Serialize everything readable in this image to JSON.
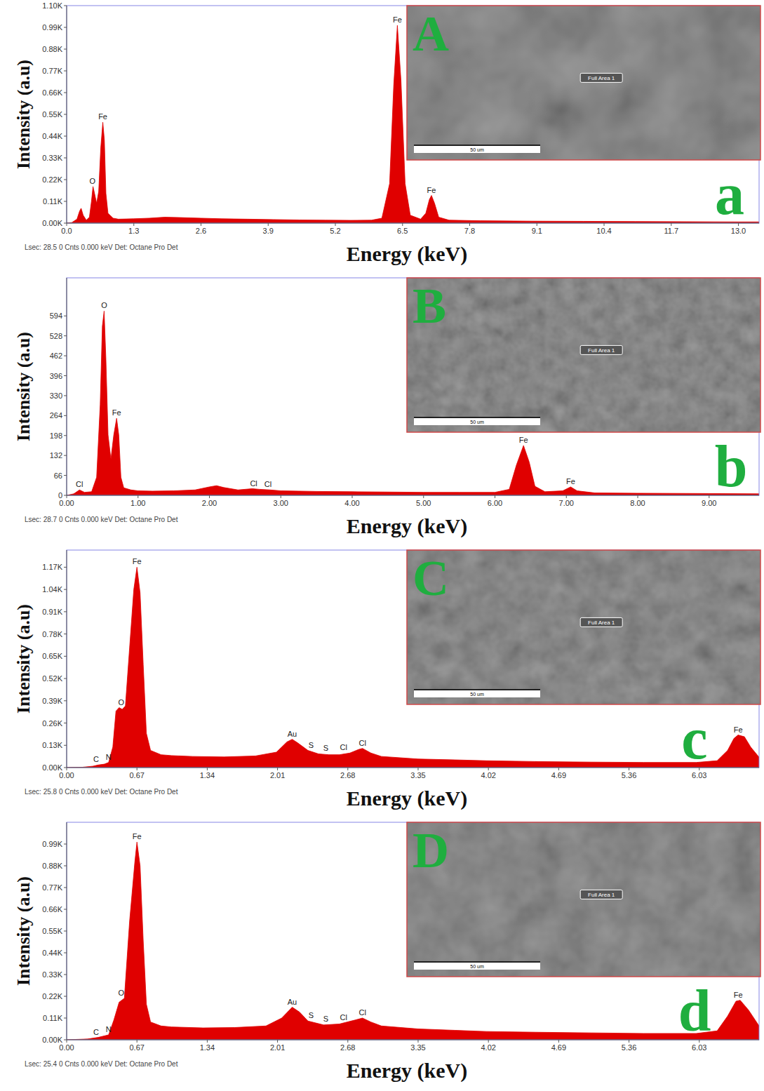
{
  "chart_data": [
    {
      "type": "area",
      "color": "#e00000",
      "panel_label": "a",
      "xlabel": "Energy (keV)",
      "ylabel": "Intensity (a.u)",
      "footer": "Lsec: 28.5 0 Cnts 0.000 keV Det: Octane Pro Det",
      "inset": {
        "label": "A",
        "area": "Full Area 1",
        "scale_bar": "50 um"
      },
      "xlim": [
        0,
        13.4
      ],
      "ylim": [
        0,
        1100
      ],
      "xticks": [
        {
          "value": 0,
          "label": "0.0"
        },
        1.3,
        2.6,
        3.9,
        5.2,
        6.5,
        7.8,
        9.1,
        10.4,
        11.7,
        {
          "value": 13,
          "label": "13.0"
        }
      ],
      "yticks": [
        {
          "value": 0,
          "label": "0.00K"
        },
        {
          "value": 110,
          "label": "0.11K"
        },
        {
          "value": 220,
          "label": "0.22K"
        },
        {
          "value": 330,
          "label": "0.33K"
        },
        {
          "value": 440,
          "label": "0.44K"
        },
        {
          "value": 550,
          "label": "0.55K"
        },
        {
          "value": 660,
          "label": "0.66K"
        },
        {
          "value": 770,
          "label": "0.77K"
        },
        {
          "value": 880,
          "label": "0.88K"
        },
        {
          "value": 990,
          "label": "0.99K"
        },
        {
          "value": 1100,
          "label": "1.10K"
        }
      ],
      "x": [
        0,
        0.1,
        0.2,
        0.25,
        0.28,
        0.32,
        0.38,
        0.44,
        0.48,
        0.51,
        0.54,
        0.58,
        0.62,
        0.66,
        0.7,
        0.73,
        0.76,
        0.8,
        0.9,
        1,
        1.3,
        1.6,
        1.9,
        2.2,
        2.6,
        3,
        3.5,
        4,
        4.5,
        5,
        5.5,
        5.9,
        6.1,
        6.25,
        6.33,
        6.4,
        6.47,
        6.55,
        6.65,
        6.85,
        6.95,
        7.02,
        7.06,
        7.12,
        7.2,
        7.4,
        8,
        9,
        10,
        11,
        12,
        13,
        13.4
      ],
      "values": [
        0,
        3,
        20,
        60,
        75,
        40,
        15,
        30,
        110,
        185,
        150,
        100,
        160,
        380,
        510,
        420,
        150,
        50,
        25,
        20,
        22,
        25,
        30,
        28,
        25,
        22,
        20,
        18,
        16,
        15,
        14,
        15,
        25,
        200,
        700,
        1000,
        720,
        200,
        40,
        20,
        50,
        120,
        140,
        100,
        30,
        15,
        12,
        10,
        9,
        8,
        7,
        6,
        6
      ],
      "annotations": [
        {
          "text": "O",
          "x": 0.5,
          "y": 185
        },
        {
          "text": "Fe",
          "x": 0.7,
          "y": 510
        },
        {
          "text": "Fe",
          "x": 6.4,
          "y": 1000
        },
        {
          "text": "Fe",
          "x": 7.06,
          "y": 140
        }
      ]
    },
    {
      "type": "area",
      "color": "#e00000",
      "panel_label": "b",
      "xlabel": "Energy (keV)",
      "ylabel": "Intensity (a.u)",
      "footer": "Lsec: 28.7 0 Cnts 0.000 keV Det: Octane Pro Det",
      "inset": {
        "label": "B",
        "area": "Full Area 1",
        "scale_bar": "50 um"
      },
      "xlim": [
        0,
        9.7
      ],
      "ylim": [
        0,
        720
      ],
      "xticks": [
        {
          "value": 0,
          "label": "0.00"
        },
        {
          "value": 1,
          "label": "1.00"
        },
        {
          "value": 2,
          "label": "2.00"
        },
        {
          "value": 3,
          "label": "3.00"
        },
        {
          "value": 4,
          "label": "4.00"
        },
        {
          "value": 5,
          "label": "5.00"
        },
        {
          "value": 6,
          "label": "6.00"
        },
        {
          "value": 7,
          "label": "7.00"
        },
        {
          "value": 8,
          "label": "8.00"
        },
        {
          "value": 9,
          "label": "9.00"
        }
      ],
      "yticks": [
        0,
        66,
        132,
        198,
        264,
        330,
        396,
        462,
        528,
        594
      ],
      "x": [
        0,
        0.1,
        0.18,
        0.25,
        0.35,
        0.42,
        0.47,
        0.5,
        0.525,
        0.55,
        0.58,
        0.62,
        0.66,
        0.7,
        0.73,
        0.76,
        0.8,
        0.9,
        1,
        1.2,
        1.5,
        1.8,
        2,
        2.1,
        2.2,
        2.4,
        2.6,
        2.7,
        2.85,
        3,
        3.5,
        4,
        4.5,
        5,
        5.5,
        6,
        6.2,
        6.3,
        6.4,
        6.48,
        6.56,
        6.7,
        6.95,
        7.06,
        7.15,
        7.4,
        8,
        9,
        9.7
      ],
      "values": [
        0,
        5,
        18,
        10,
        12,
        60,
        300,
        560,
        610,
        450,
        200,
        120,
        200,
        255,
        200,
        60,
        25,
        18,
        15,
        14,
        15,
        18,
        28,
        32,
        26,
        18,
        22,
        20,
        18,
        15,
        13,
        12,
        11,
        10,
        10,
        10,
        20,
        100,
        165,
        110,
        30,
        12,
        15,
        28,
        15,
        8,
        7,
        6,
        5
      ],
      "annotations": [
        {
          "text": "Cl",
          "x": 0.18,
          "y": 18
        },
        {
          "text": "O",
          "x": 0.525,
          "y": 610
        },
        {
          "text": "Fe",
          "x": 0.7,
          "y": 255
        },
        {
          "text": "Cl",
          "x": 2.62,
          "y": 22
        },
        {
          "text": "Cl",
          "x": 2.82,
          "y": 18
        },
        {
          "text": "Fe",
          "x": 6.4,
          "y": 165
        },
        {
          "text": "Fe",
          "x": 7.06,
          "y": 28
        }
      ]
    },
    {
      "type": "area",
      "color": "#e00000",
      "panel_label": "c",
      "xlabel": "Energy (keV)",
      "ylabel": "Intensity (a.u)",
      "footer": "Lsec: 25.8 0 Cnts 0.000 keV Det: Octane Pro Det",
      "inset": {
        "label": "C",
        "area": "Full Area 1",
        "scale_bar": "50 um"
      },
      "xlim": [
        0,
        6.6
      ],
      "ylim": [
        0,
        1270
      ],
      "xticks": [
        {
          "value": 0,
          "label": "0.00"
        },
        0.67,
        1.34,
        2.01,
        2.68,
        3.35,
        4.02,
        4.69,
        5.36,
        6.03
      ],
      "yticks": [
        {
          "value": 0,
          "label": "0.00K"
        },
        {
          "value": 130,
          "label": "0.13K"
        },
        {
          "value": 260,
          "label": "0.26K"
        },
        {
          "value": 390,
          "label": "0.39K"
        },
        {
          "value": 520,
          "label": "0.52K"
        },
        {
          "value": 650,
          "label": "0.65K"
        },
        {
          "value": 780,
          "label": "0.78K"
        },
        {
          "value": 910,
          "label": "0.91K"
        },
        {
          "value": 1040,
          "label": "1.04K"
        },
        {
          "value": 1170,
          "label": "1.17K"
        }
      ],
      "x": [
        0,
        0.15,
        0.25,
        0.3,
        0.36,
        0.4,
        0.44,
        0.47,
        0.5,
        0.53,
        0.56,
        0.6,
        0.64,
        0.67,
        0.7,
        0.73,
        0.76,
        0.8,
        0.9,
        1,
        1.2,
        1.5,
        1.8,
        2,
        2.1,
        2.15,
        2.2,
        2.3,
        2.4,
        2.5,
        2.6,
        2.7,
        2.78,
        2.82,
        2.9,
        3,
        3.35,
        3.7,
        4,
        4.5,
        5,
        5.5,
        6,
        6.2,
        6.3,
        6.36,
        6.4,
        6.46,
        6.52,
        6.6
      ],
      "values": [
        0,
        2,
        8,
        15,
        20,
        30,
        120,
        330,
        350,
        340,
        360,
        700,
        1040,
        1170,
        1020,
        600,
        200,
        100,
        75,
        70,
        65,
        62,
        68,
        90,
        150,
        165,
        145,
        100,
        80,
        75,
        75,
        85,
        105,
        112,
        85,
        65,
        50,
        45,
        40,
        35,
        32,
        30,
        30,
        40,
        100,
        170,
        190,
        180,
        120,
        60
      ],
      "annotations": [
        {
          "text": "C",
          "x": 0.28,
          "y": 15
        },
        {
          "text": "N",
          "x": 0.4,
          "y": 30
        },
        {
          "text": "O",
          "x": 0.52,
          "y": 350
        },
        {
          "text": "Fe",
          "x": 0.67,
          "y": 1170
        },
        {
          "text": "Au",
          "x": 2.15,
          "y": 165
        },
        {
          "text": "S",
          "x": 2.33,
          "y": 100
        },
        {
          "text": "S",
          "x": 2.47,
          "y": 80
        },
        {
          "text": "Cl",
          "x": 2.64,
          "y": 85
        },
        {
          "text": "Cl",
          "x": 2.82,
          "y": 112
        },
        {
          "text": "Fe",
          "x": 6.4,
          "y": 190
        }
      ]
    },
    {
      "type": "area",
      "color": "#e00000",
      "panel_label": "d",
      "xlabel": "Energy (keV)",
      "ylabel": "Intensity (a.u)",
      "footer": "Lsec: 25.4 0 Cnts 0.000 keV Det: Octane Pro Det",
      "inset": {
        "label": "D",
        "area": "Full Area 1",
        "scale_bar": "50 um"
      },
      "xlim": [
        0,
        6.6
      ],
      "ylim": [
        0,
        1100
      ],
      "xticks": [
        {
          "value": 0,
          "label": "0.00"
        },
        0.67,
        1.34,
        2.01,
        2.68,
        3.35,
        4.02,
        4.69,
        5.36,
        6.03
      ],
      "yticks": [
        {
          "value": 0,
          "label": "0.00K"
        },
        {
          "value": 110,
          "label": "0.11K"
        },
        {
          "value": 220,
          "label": "0.22K"
        },
        {
          "value": 330,
          "label": "0.33K"
        },
        {
          "value": 440,
          "label": "0.44K"
        },
        {
          "value": 550,
          "label": "0.55K"
        },
        {
          "value": 660,
          "label": "0.66K"
        },
        {
          "value": 770,
          "label": "0.77K"
        },
        {
          "value": 880,
          "label": "0.88K"
        },
        {
          "value": 990,
          "label": "0.99K"
        }
      ],
      "x": [
        0,
        0.2,
        0.3,
        0.4,
        0.45,
        0.5,
        0.55,
        0.6,
        0.65,
        0.67,
        0.7,
        0.73,
        0.76,
        0.8,
        0.9,
        1,
        1.3,
        1.6,
        1.9,
        2.05,
        2.15,
        2.22,
        2.3,
        2.45,
        2.6,
        2.75,
        2.82,
        2.9,
        3,
        3.35,
        3.7,
        4,
        4.5,
        5,
        5.5,
        6,
        6.2,
        6.3,
        6.38,
        6.42,
        6.5,
        6.6
      ],
      "values": [
        0,
        4,
        12,
        25,
        100,
        190,
        210,
        600,
        900,
        1000,
        880,
        500,
        180,
        90,
        70,
        65,
        60,
        62,
        70,
        110,
        165,
        140,
        95,
        75,
        80,
        100,
        110,
        90,
        70,
        55,
        48,
        42,
        38,
        35,
        32,
        32,
        45,
        120,
        195,
        200,
        150,
        70
      ],
      "annotations": [
        {
          "text": "C",
          "x": 0.28,
          "y": 12
        },
        {
          "text": "N",
          "x": 0.4,
          "y": 25
        },
        {
          "text": "O",
          "x": 0.52,
          "y": 210
        },
        {
          "text": "Fe",
          "x": 0.67,
          "y": 1000
        },
        {
          "text": "Au",
          "x": 2.15,
          "y": 165
        },
        {
          "text": "S",
          "x": 2.33,
          "y": 95
        },
        {
          "text": "S",
          "x": 2.47,
          "y": 78
        },
        {
          "text": "Cl",
          "x": 2.64,
          "y": 85
        },
        {
          "text": "Cl",
          "x": 2.82,
          "y": 110
        },
        {
          "text": "Fe",
          "x": 6.4,
          "y": 200
        }
      ]
    }
  ]
}
